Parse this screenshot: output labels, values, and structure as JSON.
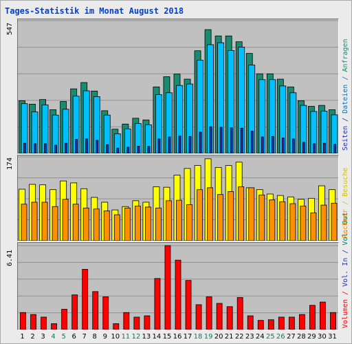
{
  "title": "Tages-Statistik im Monat August 2018",
  "colors": {
    "anfragen": "#1a8a70",
    "dateien": "#00c0ff",
    "seiten": "#2030b0",
    "besuche": "#ffff00",
    "rechner": "#ff9000",
    "volumen": "#ff0000",
    "weekend_tick": "#008060",
    "title": "#0040d0"
  },
  "legend_top": {
    "anfragen": "Anfragen",
    "dateien": "Dateien",
    "seiten": "Seiten",
    "sep": " / "
  },
  "legend_mid": {
    "besuche": "Besuche",
    "rechner": "Rechner",
    "sep": " / "
  },
  "legend_bot": {
    "volumen": "Volumen",
    "in": "Vol. In",
    "out": "Vol. Out",
    "sep": " / "
  },
  "chart_data": [
    {
      "type": "bar",
      "panel": "anfragen-dateien-seiten",
      "max_label": "547",
      "ylim": [
        0,
        547
      ],
      "categories": [
        "1",
        "2",
        "3",
        "4",
        "5",
        "6",
        "7",
        "8",
        "9",
        "10",
        "11",
        "12",
        "13",
        "14",
        "15",
        "16",
        "17",
        "18",
        "19",
        "20",
        "21",
        "22",
        "23",
        "24",
        "25",
        "26",
        "27",
        "28",
        "29",
        "30",
        "31"
      ],
      "series": [
        {
          "name": "Anfragen",
          "values": [
            217,
            203,
            222,
            180,
            214,
            266,
            292,
            257,
            176,
            100,
            121,
            145,
            138,
            274,
            316,
            327,
            306,
            423,
            510,
            484,
            484,
            460,
            412,
            328,
            328,
            306,
            274,
            217,
            194,
            198,
            180
          ]
        },
        {
          "name": "Dateien",
          "values": [
            205,
            171,
            200,
            158,
            182,
            236,
            258,
            234,
            158,
            81,
            101,
            123,
            118,
            242,
            250,
            280,
            286,
            384,
            448,
            456,
            424,
            438,
            364,
            304,
            304,
            278,
            250,
            198,
            173,
            174,
            159
          ]
        },
        {
          "name": "Seiten",
          "values": [
            42,
            40,
            40,
            34,
            42,
            58,
            60,
            54,
            36,
            22,
            26,
            30,
            29,
            60,
            68,
            72,
            70,
            88,
            110,
            108,
            106,
            104,
            92,
            68,
            70,
            64,
            60,
            46,
            40,
            42,
            38
          ]
        }
      ]
    },
    {
      "type": "bar",
      "panel": "besuche-rechner",
      "max_label": "174",
      "ylim": [
        0,
        174
      ],
      "categories": [
        "1",
        "2",
        "3",
        "4",
        "5",
        "6",
        "7",
        "8",
        "9",
        "10",
        "11",
        "12",
        "13",
        "14",
        "15",
        "16",
        "17",
        "18",
        "19",
        "20",
        "21",
        "22",
        "23",
        "24",
        "25",
        "26",
        "27",
        "28",
        "29",
        "30",
        "31"
      ],
      "series": [
        {
          "name": "Besuche",
          "values": [
            107,
            117,
            116,
            106,
            124,
            120,
            108,
            90,
            80,
            64,
            71,
            83,
            80,
            112,
            111,
            136,
            150,
            156,
            170,
            152,
            156,
            163,
            110,
            106,
            97,
            94,
            91,
            86,
            88,
            114,
            106
          ]
        },
        {
          "name": "Rechner",
          "values": [
            76,
            80,
            80,
            71,
            86,
            76,
            68,
            66,
            62,
            54,
            68,
            72,
            70,
            68,
            83,
            84,
            75,
            106,
            110,
            96,
            102,
            112,
            110,
            95,
            85,
            81,
            77,
            72,
            58,
            74,
            78
          ]
        }
      ]
    },
    {
      "type": "bar",
      "panel": "volumen",
      "max_label": "6.41",
      "ylim": [
        0,
        6.41
      ],
      "categories": [
        "1",
        "2",
        "3",
        "4",
        "5",
        "6",
        "7",
        "8",
        "9",
        "10",
        "11",
        "12",
        "13",
        "14",
        "15",
        "16",
        "17",
        "18",
        "19",
        "20",
        "21",
        "22",
        "23",
        "24",
        "25",
        "26",
        "27",
        "28",
        "29",
        "30",
        "31"
      ],
      "series": [
        {
          "name": "Volumen",
          "values": [
            1.3,
            1.15,
            0.95,
            0.45,
            1.55,
            2.65,
            4.6,
            2.9,
            2.5,
            0.45,
            1.3,
            0.95,
            1.05,
            3.9,
            6.41,
            5.3,
            3.75,
            1.9,
            2.5,
            2.0,
            1.75,
            2.45,
            1.05,
            0.7,
            0.75,
            0.95,
            0.95,
            1.15,
            1.85,
            2.1,
            1.3
          ]
        }
      ]
    }
  ],
  "x_ticks": [
    "1",
    "2",
    "3",
    "4",
    "5",
    "6",
    "7",
    "8",
    "9",
    "10",
    "11",
    "12",
    "13",
    "14",
    "15",
    "16",
    "17",
    "18",
    "19",
    "20",
    "21",
    "22",
    "23",
    "24",
    "25",
    "26",
    "27",
    "28",
    "29",
    "30",
    "31"
  ],
  "weekend_days": [
    "4",
    "5",
    "11",
    "12",
    "18",
    "19",
    "25",
    "26"
  ]
}
